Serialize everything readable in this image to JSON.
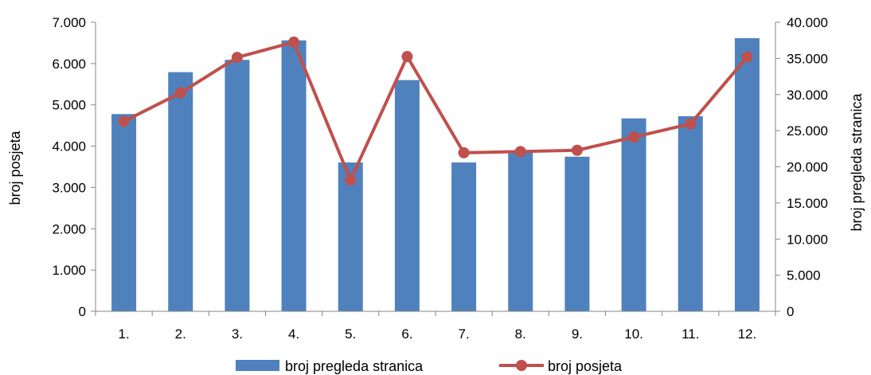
{
  "chart_data": {
    "type": "bar+line",
    "title": "",
    "categories": [
      "1.",
      "2.",
      "3.",
      "4.",
      "5.",
      "6.",
      "7.",
      "8.",
      "9.",
      "10.",
      "11.",
      "12."
    ],
    "series": [
      {
        "name": "broj pregleda stranica",
        "type": "bar",
        "axis": "right",
        "color": "#4F81BD",
        "values": [
          27300,
          33100,
          34800,
          37500,
          20600,
          32000,
          20600,
          22000,
          21400,
          26700,
          27000,
          37800
        ]
      },
      {
        "name": "broj posjeta",
        "type": "line",
        "axis": "left",
        "color": "#C0504D",
        "values": [
          4600,
          5290,
          6150,
          6520,
          3180,
          6170,
          3840,
          3870,
          3900,
          4220,
          4540,
          6160
        ]
      }
    ],
    "y_left": {
      "label": "broj posjeta",
      "ylim": [
        0,
        7000
      ],
      "ticks": [
        0,
        1000,
        2000,
        3000,
        4000,
        5000,
        6000,
        7000
      ],
      "tick_labels": [
        "0",
        "1.000",
        "2.000",
        "3.000",
        "4.000",
        "5.000",
        "6.000",
        "7.000"
      ]
    },
    "y_right": {
      "label": "broj pregleda stranica",
      "ylim": [
        0,
        40000
      ],
      "ticks": [
        0,
        5000,
        10000,
        15000,
        20000,
        25000,
        30000,
        35000,
        40000
      ],
      "tick_labels": [
        "0",
        "5.000",
        "10.000",
        "15.000",
        "20.000",
        "25.000",
        "30.000",
        "35.000",
        "40.000"
      ]
    },
    "grid": false,
    "legend_position": "bottom"
  }
}
